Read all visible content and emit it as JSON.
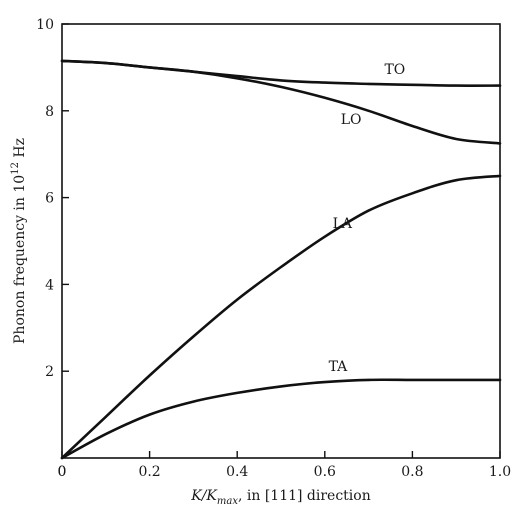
{
  "chart_data": {
    "type": "line",
    "xlabel_parts": {
      "before": "K/K",
      "subscript": "max",
      "after": ", in [111] direction"
    },
    "ylabel_parts": {
      "before": "Phonon frequency in 10",
      "superscript": "12",
      "after": " Hz"
    },
    "xlim": [
      0,
      1.0
    ],
    "ylim": [
      0,
      10
    ],
    "x_ticks": [
      "0",
      "0.2",
      "0.4",
      "0.6",
      "0.8",
      "1.0"
    ],
    "y_ticks": [
      "2",
      "4",
      "6",
      "8",
      "10"
    ],
    "grid": false,
    "series": [
      {
        "name": "TO",
        "x": [
          0,
          0.1,
          0.2,
          0.3,
          0.4,
          0.5,
          0.6,
          0.7,
          0.8,
          0.9,
          1.0
        ],
        "y": [
          9.15,
          9.1,
          9.0,
          8.9,
          8.8,
          8.7,
          8.65,
          8.62,
          8.6,
          8.58,
          8.58
        ]
      },
      {
        "name": "LO",
        "x": [
          0,
          0.1,
          0.2,
          0.3,
          0.4,
          0.5,
          0.6,
          0.7,
          0.8,
          0.9,
          1.0
        ],
        "y": [
          9.15,
          9.1,
          9.0,
          8.9,
          8.75,
          8.55,
          8.3,
          8.0,
          7.65,
          7.35,
          7.25
        ]
      },
      {
        "name": "LA",
        "x": [
          0,
          0.1,
          0.2,
          0.3,
          0.4,
          0.5,
          0.6,
          0.7,
          0.8,
          0.9,
          1.0
        ],
        "y": [
          0,
          0.95,
          1.9,
          2.8,
          3.65,
          4.4,
          5.1,
          5.7,
          6.1,
          6.4,
          6.5
        ]
      },
      {
        "name": "TA",
        "x": [
          0,
          0.1,
          0.2,
          0.3,
          0.4,
          0.5,
          0.6,
          0.7,
          0.8,
          0.9,
          1.0
        ],
        "y": [
          0,
          0.55,
          1.0,
          1.3,
          1.5,
          1.65,
          1.75,
          1.8,
          1.8,
          1.8,
          1.8
        ]
      }
    ],
    "curve_labels": [
      {
        "text": "TO",
        "x": 0.76,
        "y": 8.85
      },
      {
        "text": "LO",
        "x": 0.66,
        "y": 7.7
      },
      {
        "text": "LA",
        "x": 0.64,
        "y": 5.3
      },
      {
        "text": "TA",
        "x": 0.63,
        "y": 2.0
      }
    ]
  }
}
